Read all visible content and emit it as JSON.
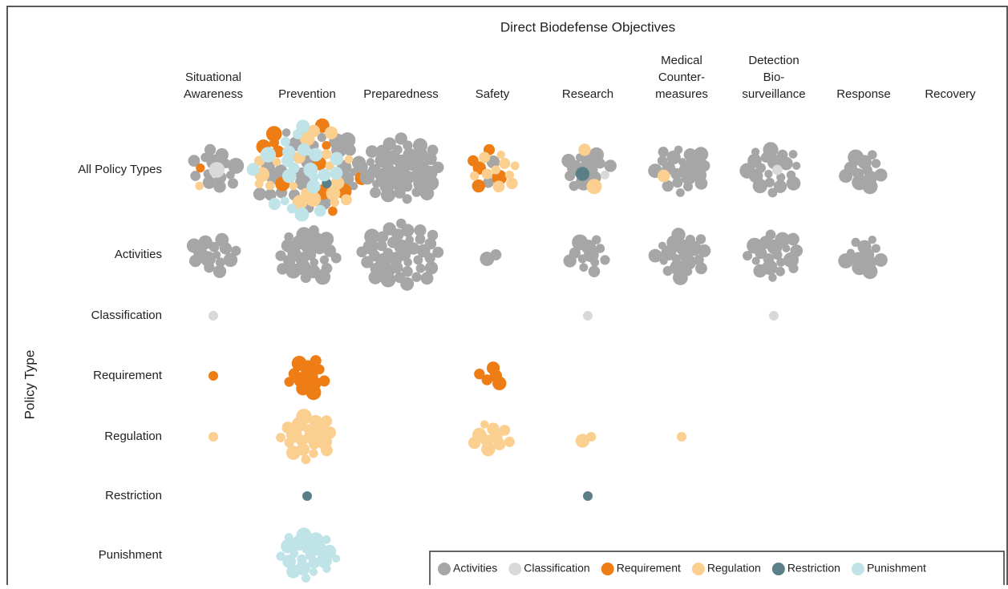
{
  "chart_data": {
    "type": "bubble-matrix",
    "title": "Direct Biodefense Objectives",
    "y_label": "Policy Type",
    "all_label": "All Policy Types",
    "columns": [
      [
        "Situational",
        "Awareness"
      ],
      [
        "Prevention"
      ],
      [
        "Preparedness"
      ],
      [
        "Safety"
      ],
      [
        "Research"
      ],
      [
        "Medical",
        "Counter-",
        "measures"
      ],
      [
        "Detection",
        "Bio-",
        "surveillance"
      ],
      [
        "Response"
      ],
      [
        "Recovery"
      ]
    ],
    "series": [
      {
        "name": "Activities",
        "color": "#a6a6a6",
        "values": [
          14,
          25,
          40,
          2,
          12,
          20,
          20,
          12,
          null
        ]
      },
      {
        "name": "Classification",
        "color": "#d9d9d9",
        "values": [
          1,
          null,
          null,
          null,
          1,
          null,
          1,
          null,
          null
        ]
      },
      {
        "name": "Requirement",
        "color": "#ed7d14",
        "values": [
          1,
          12,
          null,
          5,
          null,
          null,
          null,
          null,
          null
        ]
      },
      {
        "name": "Regulation",
        "color": "#fbcf8f",
        "values": [
          1,
          20,
          null,
          10,
          2,
          1,
          null,
          null,
          null
        ]
      },
      {
        "name": "Restriction",
        "color": "#5b7f88",
        "values": [
          null,
          1,
          null,
          null,
          1,
          null,
          null,
          null,
          null
        ]
      },
      {
        "name": "Punishment",
        "color": "#bfe3e6",
        "values": [
          null,
          22,
          null,
          null,
          null,
          null,
          null,
          null,
          null
        ]
      }
    ]
  }
}
